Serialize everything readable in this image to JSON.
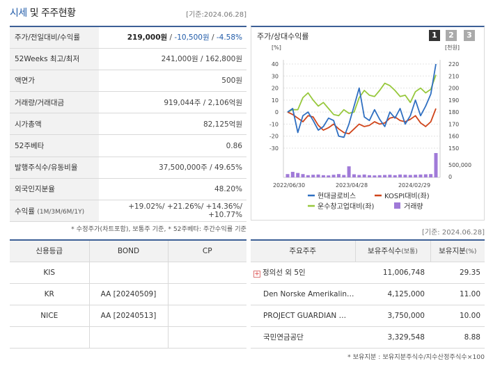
{
  "title": {
    "main": "시세",
    "rest": " 및 주주현황"
  },
  "date_top": "[기준:2024.06.28]",
  "info": {
    "price_label": "주가/전일대비/수익률",
    "price": "219,000원",
    "sep1": " / ",
    "change": "-10,500원",
    "sep2": " / ",
    "change_rate": "-4.58%",
    "w52_label": "52Weeks 최고/최저",
    "w52_value": "241,000원 / 162,800원",
    "par_label": "액면가",
    "par_value": "500원",
    "volume_label": "거래량/거래대금",
    "volume_value": "919,044주 / 2,106억원",
    "mcap_label": "시가총액",
    "mcap_value": "82,125억원",
    "beta_label": "52주베타",
    "beta_value": "0.86",
    "shares_label": "발행주식수/유동비율",
    "shares_value": "37,500,000주 / 49.65%",
    "foreign_label": "외국인지분율",
    "foreign_value": "48.20%",
    "return_label": "수익률",
    "return_sub": "(1M/3M/6M/1Y)",
    "r1m": "+19.02%/",
    "r3m": " +21.26%/",
    "r6m": " +14.36%/",
    "r1y": " +10.77%"
  },
  "foot1": "* 수정주가(차트포함), 보통주 기준, * 52주베타: 주간수익률 기준",
  "chart": {
    "title": "주가/상대수익률",
    "pages": [
      "1",
      "2",
      "3"
    ],
    "colors": {
      "hyundai": "#2f6fc1",
      "kospi": "#d0451b",
      "transport": "#97c83c",
      "volume": "#a07ad8"
    }
  },
  "chart_data": {
    "type": "line",
    "left_axis": {
      "label": "[%]",
      "ticks": [
        "40",
        "30",
        "20",
        "10",
        "0",
        "-10",
        "-20",
        "-30"
      ],
      "range": [
        -30,
        40
      ]
    },
    "right_axis": {
      "label": "[천원]",
      "ticks": [
        "220",
        "210",
        "200",
        "190",
        "180",
        "170",
        "160",
        "150"
      ],
      "range": [
        150,
        220
      ]
    },
    "volume_axis": {
      "ticks": [
        "500,000",
        "0"
      ]
    },
    "x_ticks": [
      "2022/06/30",
      "2023/04/28",
      "2024/02/29"
    ],
    "series": [
      {
        "name": "현대글로비스",
        "axis": "left",
        "values": [
          0,
          3,
          -17,
          -3,
          0,
          -7,
          -15,
          -12,
          -5,
          -7,
          -20,
          -21,
          -10,
          5,
          20,
          -4,
          -7,
          2,
          -6,
          -12,
          0,
          -5,
          3,
          -10,
          -3,
          10,
          -3,
          5,
          15,
          40
        ]
      },
      {
        "name": "KOSPI대비(좌)",
        "axis": "left",
        "values": [
          0,
          -2,
          -5,
          -8,
          -3,
          -4,
          -11,
          -15,
          -13,
          -10,
          -14,
          -17,
          -18,
          -14,
          -10,
          -12,
          -11,
          -8,
          -10,
          -9,
          -5,
          -4,
          -7,
          -8,
          -6,
          -3,
          -9,
          -12,
          -8,
          3
        ]
      },
      {
        "name": "운수창고업대비(좌)",
        "axis": "left",
        "values": [
          0,
          2,
          2,
          12,
          16,
          10,
          5,
          8,
          3,
          -2,
          -3,
          2,
          -1,
          0,
          12,
          18,
          14,
          13,
          18,
          24,
          22,
          18,
          13,
          14,
          8,
          17,
          20,
          16,
          19,
          31
        ]
      },
      {
        "name": "거래량",
        "axis": "volume",
        "values": [
          150000,
          250000,
          200000,
          150000,
          100000,
          120000,
          130000,
          100000,
          90000,
          120000,
          150000,
          110000,
          500000,
          140000,
          110000,
          130000,
          100000,
          90000,
          100000,
          110000,
          120000,
          100000,
          130000,
          120000,
          110000,
          120000,
          130000,
          140000,
          150000,
          1100000
        ]
      }
    ],
    "legend": [
      "현대글로비스",
      "KOSPI대비(좌)",
      "운수창고업대비(좌)",
      "거래량"
    ]
  },
  "date_mid": "[기준: 2024.06.28]",
  "credit": {
    "headers": [
      "신용등급",
      "BOND",
      "CP"
    ],
    "rows": [
      [
        "KIS",
        "",
        ""
      ],
      [
        "KR",
        "AA   [20240509]",
        ""
      ],
      [
        "NICE",
        "AA   [20240513]",
        ""
      ],
      [
        "",
        "",
        ""
      ]
    ]
  },
  "holders": {
    "headers": {
      "name": "주요주주",
      "shares": "보유주식수",
      "shares_unit": "(보통)",
      "pct": "보유지분",
      "pct_unit": "(%)"
    },
    "plus": "+",
    "rows": [
      {
        "name": "정의선 외 5인",
        "shares": "11,006,748",
        "pct": "29.35"
      },
      {
        "name": "Den Norske Amerikalin…",
        "shares": "4,125,000",
        "pct": "11.00"
      },
      {
        "name": "PROJECT GUARDIAN …",
        "shares": "3,750,000",
        "pct": "10.00"
      },
      {
        "name": "국민연금공단",
        "shares": "3,329,548",
        "pct": "8.88"
      }
    ]
  },
  "foot2": "* 보유지분 : 보유지분주식수/지수산정주식수×100"
}
